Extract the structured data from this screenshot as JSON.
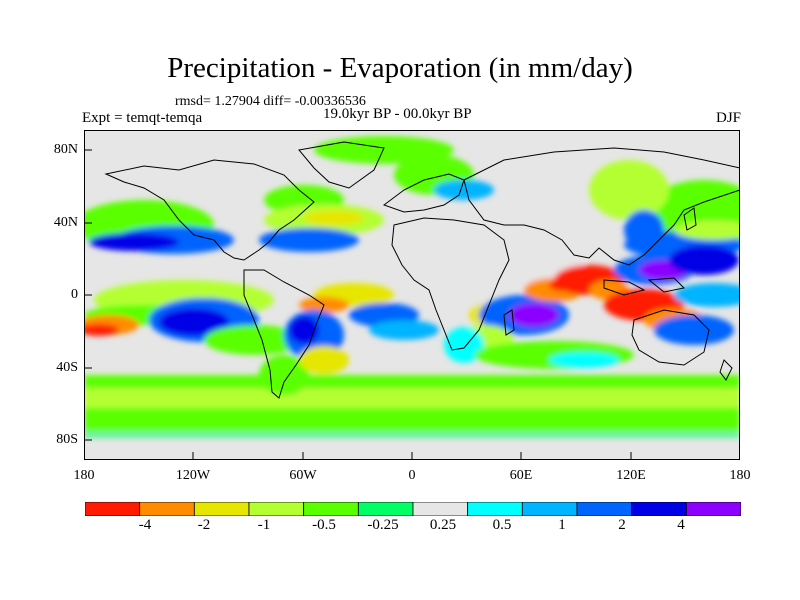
{
  "title": "Precipitation - Evaporation (in mm/day)",
  "stats": "rmsd= 1.27904 diff= -0.00336536",
  "expt": "Expt = temqt-temqa",
  "period": "19.0kyr BP - 00.0kyr BP",
  "season": "DJF",
  "lat_labels": [
    "80N",
    "40N",
    "0",
    "40S",
    "80S"
  ],
  "lon_labels": [
    "180",
    "120W",
    "60W",
    "0",
    "60E",
    "120E",
    "180"
  ],
  "colorbar": {
    "labels": [
      "-4",
      "-2",
      "-1",
      "-0.5",
      "-0.25",
      "0.25",
      "0.5",
      "1",
      "2",
      "4"
    ],
    "colors": [
      "#ff1a00",
      "#ff8c00",
      "#e6e600",
      "#b4ff32",
      "#5aff00",
      "#00ff64",
      "#e6e6e6",
      "#00ffff",
      "#00b4ff",
      "#0064ff",
      "#0000e6",
      "#8c00ff"
    ]
  },
  "colors": {
    "land_outline": "#000000",
    "neutral": "#e6e6e6"
  }
}
